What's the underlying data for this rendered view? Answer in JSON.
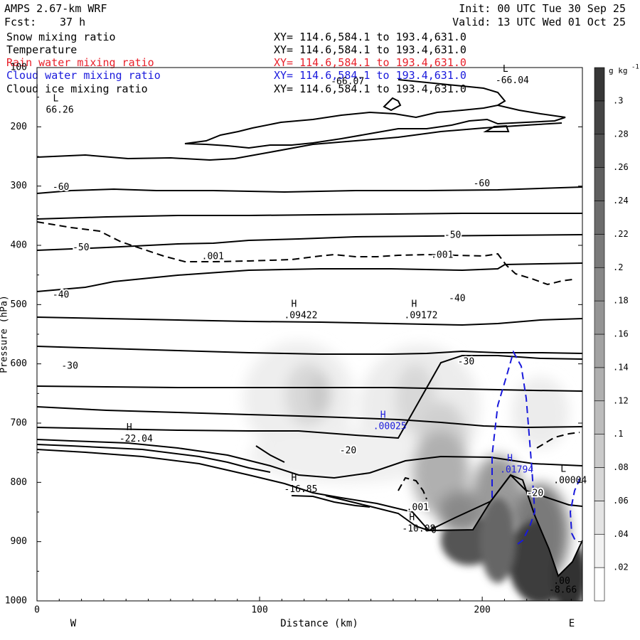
{
  "header": {
    "model": "AMPS 2.67-km WRF",
    "init": "Init: 00 UTC Tue 30 Sep 25",
    "fcst_label": "Fcst:",
    "fcst_value": "37 h",
    "valid": "Valid: 13 UTC Wed 01 Oct 25"
  },
  "variables": [
    {
      "name": "Snow mixing ratio",
      "xy": "XY= 114.6,584.1 to 193.4,631.0",
      "color": "#000000"
    },
    {
      "name": "Temperature",
      "xy": "XY= 114.6,584.1 to 193.4,631.0",
      "color": "#000000"
    },
    {
      "name": "Rain water mixing ratio",
      "xy": "XY= 114.6,584.1 to 193.4,631.0",
      "color": "#e8202a"
    },
    {
      "name": "Cloud water mixing ratio",
      "xy": "XY= 114.6,584.1 to 193.4,631.0",
      "color": "#1a1adc"
    },
    {
      "name": "Cloud ice mixing ratio",
      "xy": "XY= 114.6,584.1 to 193.4,631.0",
      "color": "#000000"
    }
  ],
  "chart_data": {
    "type": "contour-cross-section",
    "xlabel": "Distance (km)",
    "ylabel": "Pressure (hPa)",
    "xlim": [
      0,
      245
    ],
    "ylim": [
      1000,
      100
    ],
    "xticks": [
      0,
      100,
      200
    ],
    "yticks": [
      100,
      200,
      300,
      400,
      500,
      600,
      700,
      800,
      900,
      1000
    ],
    "x_end_labels": {
      "left": "W",
      "right": "E"
    },
    "colorbar": {
      "unit_label": "g kg",
      "unit_exp": "-1",
      "ticks": [
        ".3",
        ".28",
        ".26",
        ".24",
        ".22",
        ".2",
        ".18",
        ".16",
        ".14",
        ".12",
        ".1",
        ".08",
        ".06",
        ".04",
        ".02"
      ],
      "range": [
        0,
        0.32
      ]
    },
    "temperature_labels": [
      {
        "text": "-60",
        "x": 7,
        "p": 302
      },
      {
        "text": "-60",
        "x": 196,
        "p": 296
      },
      {
        "text": "-50",
        "x": 16,
        "p": 404
      },
      {
        "text": "-50",
        "x": 183,
        "p": 383
      },
      {
        "text": "-40",
        "x": 7,
        "p": 484
      },
      {
        "text": "-40",
        "x": 185,
        "p": 490
      },
      {
        "text": "-30",
        "x": 11,
        "p": 604
      },
      {
        "text": "-30",
        "x": 189,
        "p": 597
      },
      {
        "text": "-20",
        "x": 136,
        "p": 747
      },
      {
        "text": "-20",
        "x": 220,
        "p": 819
      }
    ],
    "ice_labels": [
      {
        "text": ".001",
        "x": 74,
        "p": 419
      },
      {
        "text": ".001",
        "x": 177,
        "p": 417
      },
      {
        "text": ".001",
        "x": 166,
        "p": 843
      }
    ],
    "extrema": [
      {
        "mark": "H",
        "value": ".09422",
        "x": 111,
        "p": 519,
        "color": "#000000"
      },
      {
        "mark": "H",
        "value": ".09172",
        "x": 165,
        "p": 519,
        "color": "#000000"
      },
      {
        "mark": "H",
        "value": "-22.04",
        "x": 37,
        "p": 727,
        "color": "#000000"
      },
      {
        "mark": "H",
        "value": "-16.85",
        "x": 111,
        "p": 812,
        "color": "#000000"
      },
      {
        "mark": "H",
        "value": "-10.08",
        "x": 164,
        "p": 879,
        "color": "#000000"
      },
      {
        "mark": "H",
        "value": ".00025",
        "x": 151,
        "p": 706,
        "color": "#1a1adc"
      },
      {
        "mark": "H",
        "value": ".01794",
        "x": 208,
        "p": 779,
        "color": "#1a1adc"
      },
      {
        "mark": "L",
        "value": "66.26",
        "x": 4,
        "p": 172,
        "color": "#000000"
      },
      {
        "mark": "L",
        "value": "-66.04",
        "x": 206,
        "p": 122,
        "color": "#000000"
      },
      {
        "mark": "L",
        "value": ".00004",
        "x": 232,
        "p": 797,
        "color": "#000000"
      },
      {
        "mark": "",
        "value": "-66.07",
        "x": 132,
        "p": 124,
        "color": "#000000"
      },
      {
        "mark": "",
        "value": ".00",
        "x": 232,
        "p": 967,
        "color": "#000000"
      },
      {
        "mark": "",
        "value": "-8.66",
        "x": 230,
        "p": 982,
        "color": "#000000"
      },
      {
        "mark": "",
        "value": "0",
        "x": 177,
        "p": 881,
        "color": "#000000"
      }
    ]
  }
}
